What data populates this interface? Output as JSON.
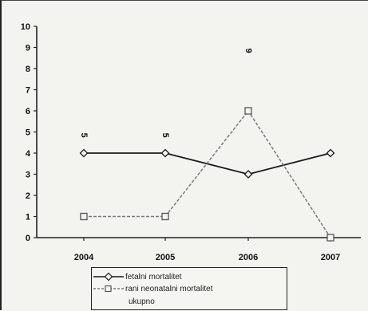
{
  "chart_data": {
    "type": "line",
    "categories": [
      "2004",
      "2005",
      "2006",
      "2007"
    ],
    "series": [
      {
        "name": "fetalni mortalitet",
        "values": [
          4,
          4,
          3,
          4
        ],
        "color": "#1a1a1a",
        "marker": "diamond"
      },
      {
        "name": "rani neonatalni mortalitet",
        "values": [
          1,
          1,
          6,
          0
        ],
        "color": "#7a7a7a",
        "marker": "square"
      }
    ],
    "totals": [
      5,
      5,
      9,
      null
    ],
    "total_label": "ukupno",
    "yticks": [
      "0",
      "1",
      "2",
      "3",
      "4",
      "5",
      "6",
      "7",
      "8",
      "9",
      "10"
    ],
    "ylim": [
      0,
      10
    ],
    "grid": false,
    "legend_position": "bottom"
  }
}
